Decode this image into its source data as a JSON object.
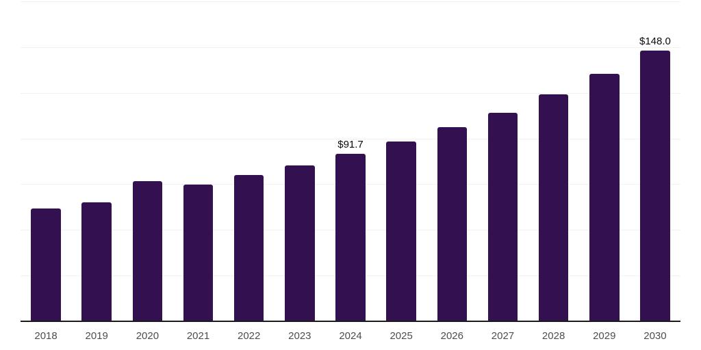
{
  "chart_data": {
    "type": "bar",
    "title": "",
    "xlabel": "",
    "ylabel": "",
    "categories": [
      "2018",
      "2019",
      "2020",
      "2021",
      "2022",
      "2023",
      "2024",
      "2025",
      "2026",
      "2027",
      "2028",
      "2029",
      "2030"
    ],
    "values": [
      61.7,
      65.1,
      76.5,
      74.9,
      80.2,
      85.4,
      91.7,
      98.4,
      106.1,
      114.2,
      124.2,
      135.3,
      148.0
    ],
    "bar_labels": [
      null,
      null,
      null,
      null,
      null,
      null,
      "$91.7",
      null,
      null,
      null,
      null,
      null,
      "$148.0"
    ],
    "ylim": [
      0,
      175
    ],
    "gridline_step": 25,
    "grid": true,
    "legend": false,
    "colors": {
      "bar": "#331150",
      "grid": "#f1f1f1",
      "axis": "#1a1a1a",
      "tick_label": "#4d4d4d",
      "data_label": "#0a0a0a",
      "background": "#ffffff"
    }
  }
}
